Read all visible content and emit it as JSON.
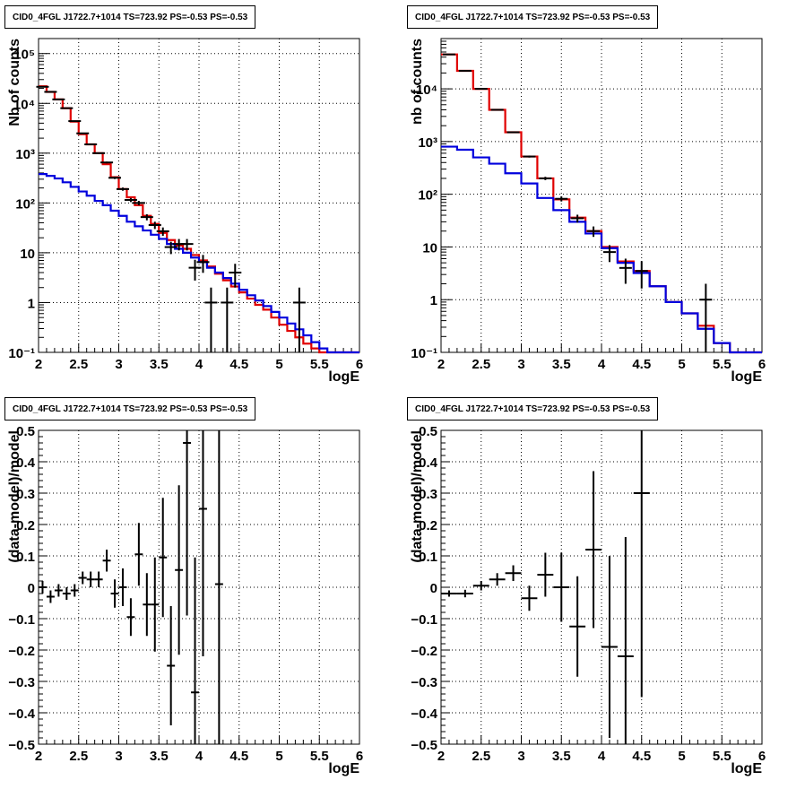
{
  "colors": {
    "data": "#000000",
    "model_total": "#e00000",
    "model_background": "#0000dd",
    "grid": "#000000"
  },
  "chart_data": [
    {
      "type": "step-histogram",
      "title": "CID0_4FGL J1722.7+1014 TS=723.92 PS=-0.53 PS=-0.53",
      "xlabel": "logE",
      "ylabel": "Nb of counts",
      "log_y": true,
      "grid": true,
      "xlim": [
        2,
        6
      ],
      "ylim": [
        0.1,
        200000
      ],
      "x_ticks": [
        {
          "v": 2,
          "label": "2"
        },
        {
          "v": 2.5,
          "label": "2.5"
        },
        {
          "v": 3,
          "label": "3"
        },
        {
          "v": 3.5,
          "label": "3.5"
        },
        {
          "v": 4,
          "label": "4"
        },
        {
          "v": 4.5,
          "label": "4.5"
        },
        {
          "v": 5,
          "label": "5"
        },
        {
          "v": 5.5,
          "label": "5.5"
        },
        {
          "v": 6,
          "label": "6"
        }
      ],
      "y_ticks": [
        {
          "v": 0.1,
          "label": "10⁻¹"
        },
        {
          "v": 1,
          "label": "1"
        },
        {
          "v": 10,
          "label": "10"
        },
        {
          "v": 100,
          "label": "10²"
        },
        {
          "v": 1000,
          "label": "10³"
        },
        {
          "v": 10000,
          "label": "10⁴"
        },
        {
          "v": 100000,
          "label": "10⁵"
        }
      ],
      "bin_edges": [
        2,
        2.1,
        2.2,
        2.3,
        2.4,
        2.5,
        2.6,
        2.7,
        2.8,
        2.9,
        3,
        3.1,
        3.2,
        3.3,
        3.4,
        3.5,
        3.6,
        3.7,
        3.8,
        3.9,
        4,
        4.1,
        4.2,
        4.3,
        4.4,
        4.5,
        4.6,
        4.7,
        4.8,
        4.9,
        5,
        5.1,
        5.2,
        5.3,
        5.4,
        5.5,
        5.6,
        5.7,
        5.8,
        5.9,
        6
      ],
      "series": [
        {
          "role": "model_total",
          "values": [
            22000,
            17000,
            12000,
            8000,
            4300,
            2400,
            1500,
            1000,
            600,
            330,
            190,
            130,
            90,
            55,
            38,
            25,
            18,
            14,
            12,
            9,
            7,
            5.3,
            3.8,
            2.8,
            2.1,
            1.6,
            1.2,
            0.9,
            0.72,
            0.5,
            0.36,
            0.27,
            0.2,
            0.15,
            0.12,
            0.1,
            0.1,
            0.1,
            0.1,
            0.1
          ]
        },
        {
          "role": "model_background",
          "values": [
            380,
            350,
            310,
            260,
            210,
            170,
            140,
            110,
            90,
            70,
            55,
            42,
            34,
            28,
            23,
            19,
            15,
            12,
            10,
            8,
            6.5,
            5,
            4,
            3.1,
            2.4,
            1.8,
            1.4,
            1.1,
            0.85,
            0.65,
            0.5,
            0.38,
            0.29,
            0.22,
            0.16,
            0.12,
            0.1,
            0.1,
            0.1,
            0.1
          ]
        },
        {
          "role": "data",
          "points": [
            {
              "x": 2.05,
              "y": 21500
            },
            {
              "x": 2.15,
              "y": 17000
            },
            {
              "x": 2.25,
              "y": 12000
            },
            {
              "x": 2.35,
              "y": 8000
            },
            {
              "x": 2.45,
              "y": 4400
            },
            {
              "x": 2.55,
              "y": 2500
            },
            {
              "x": 2.65,
              "y": 1500
            },
            {
              "x": 2.75,
              "y": 1000
            },
            {
              "x": 2.85,
              "y": 650
            },
            {
              "x": 2.95,
              "y": 320
            },
            {
              "x": 3.05,
              "y": 190
            },
            {
              "x": 3.15,
              "y": 115
            },
            {
              "x": 3.25,
              "y": 100
            },
            {
              "x": 3.35,
              "y": 52
            },
            {
              "x": 3.45,
              "y": 36
            },
            {
              "x": 3.55,
              "y": 27
            },
            {
              "x": 3.65,
              "y": 13
            },
            {
              "x": 3.75,
              "y": 15
            },
            {
              "x": 3.85,
              "y": 15
            },
            {
              "x": 3.95,
              "y": 5
            },
            {
              "x": 4.05,
              "y": 6.5
            },
            {
              "x": 4.15,
              "y": 1
            },
            {
              "x": 4.35,
              "y": 1
            },
            {
              "x": 4.45,
              "y": 4
            },
            {
              "x": 5.25,
              "y": 1
            }
          ]
        }
      ]
    },
    {
      "type": "step-histogram",
      "title": "CID0_4FGL J1722.7+1014 TS=723.92 PS=-0.53 PS=-0.53",
      "xlabel": "logE",
      "ylabel": "nb of counts",
      "log_y": true,
      "grid": true,
      "xlim": [
        2,
        6
      ],
      "ylim": [
        0.1,
        90000
      ],
      "x_ticks": [
        {
          "v": 2,
          "label": "2"
        },
        {
          "v": 2.5,
          "label": "2.5"
        },
        {
          "v": 3,
          "label": "3"
        },
        {
          "v": 3.5,
          "label": "3.5"
        },
        {
          "v": 4,
          "label": "4"
        },
        {
          "v": 4.5,
          "label": "4.5"
        },
        {
          "v": 5,
          "label": "5"
        },
        {
          "v": 5.5,
          "label": "5.5"
        },
        {
          "v": 6,
          "label": "6"
        }
      ],
      "y_ticks": [
        {
          "v": 0.1,
          "label": "10⁻¹"
        },
        {
          "v": 1,
          "label": "1"
        },
        {
          "v": 10,
          "label": "10"
        },
        {
          "v": 100,
          "label": "10²"
        },
        {
          "v": 1000,
          "label": "10³"
        },
        {
          "v": 10000,
          "label": "10⁴"
        }
      ],
      "bin_edges": [
        2,
        2.2,
        2.4,
        2.6,
        2.8,
        3,
        3.2,
        3.4,
        3.6,
        3.8,
        4,
        4.2,
        4.4,
        4.6,
        4.8,
        5,
        5.2,
        5.4,
        5.6,
        5.8,
        6
      ],
      "series": [
        {
          "role": "model_total",
          "values": [
            45000,
            22000,
            10000,
            4000,
            1500,
            520,
            200,
            80,
            36,
            20,
            10,
            5.3,
            3.5,
            1.8,
            0.9,
            0.55,
            0.32,
            0.15,
            0.1,
            0.1
          ]
        },
        {
          "role": "model_background",
          "values": [
            800,
            700,
            500,
            380,
            250,
            160,
            85,
            50,
            30,
            18,
            9.5,
            5,
            3.2,
            1.8,
            0.9,
            0.55,
            0.28,
            0.15,
            0.1,
            0.1
          ]
        },
        {
          "role": "data",
          "points": [
            {
              "x": 2.1,
              "y": 45000
            },
            {
              "x": 2.3,
              "y": 22000
            },
            {
              "x": 2.5,
              "y": 10000
            },
            {
              "x": 2.7,
              "y": 4000
            },
            {
              "x": 2.9,
              "y": 1500
            },
            {
              "x": 3.1,
              "y": 520
            },
            {
              "x": 3.3,
              "y": 200
            },
            {
              "x": 3.5,
              "y": 82
            },
            {
              "x": 3.7,
              "y": 35
            },
            {
              "x": 3.9,
              "y": 20
            },
            {
              "x": 4.1,
              "y": 8
            },
            {
              "x": 4.3,
              "y": 4
            },
            {
              "x": 4.5,
              "y": 3.5
            },
            {
              "x": 5.3,
              "y": 1
            }
          ]
        }
      ]
    },
    {
      "type": "scatter-errorbars",
      "title": "CID0_4FGL J1722.7+1014 TS=723.92 PS=-0.53 PS=-0.53",
      "xlabel": "logE",
      "ylabel": "(data-model)/model",
      "log_y": false,
      "grid": true,
      "xlim": [
        2,
        6
      ],
      "ylim": [
        -0.5,
        0.5
      ],
      "x_ticks": [
        {
          "v": 2,
          "label": "2"
        },
        {
          "v": 2.5,
          "label": "2.5"
        },
        {
          "v": 3,
          "label": "3"
        },
        {
          "v": 3.5,
          "label": "3.5"
        },
        {
          "v": 4,
          "label": "4"
        },
        {
          "v": 4.5,
          "label": "4.5"
        },
        {
          "v": 5,
          "label": "5"
        },
        {
          "v": 5.5,
          "label": "5.5"
        },
        {
          "v": 6,
          "label": "6"
        }
      ],
      "y_ticks": [
        {
          "v": -0.5,
          "label": "−0.5"
        },
        {
          "v": -0.4,
          "label": "−0.4"
        },
        {
          "v": -0.3,
          "label": "−0.3"
        },
        {
          "v": -0.2,
          "label": "−0.2"
        },
        {
          "v": -0.1,
          "label": "−0.1"
        },
        {
          "v": 0,
          "label": "0"
        },
        {
          "v": 0.1,
          "label": "0.1"
        },
        {
          "v": 0.2,
          "label": "0.2"
        },
        {
          "v": 0.3,
          "label": "0.3"
        },
        {
          "v": 0.4,
          "label": "0.4"
        },
        {
          "v": 0.5,
          "label": "0.5"
        }
      ],
      "series": [
        {
          "role": "data",
          "points": [
            {
              "x": 2.05,
              "y": 0.0,
              "err": 0.02,
              "xerr": 0.05
            },
            {
              "x": 2.15,
              "y": -0.03,
              "err": 0.02,
              "xerr": 0.05
            },
            {
              "x": 2.25,
              "y": -0.01,
              "err": 0.02,
              "xerr": 0.05
            },
            {
              "x": 2.35,
              "y": -0.02,
              "err": 0.02,
              "xerr": 0.05
            },
            {
              "x": 2.45,
              "y": -0.01,
              "err": 0.02,
              "xerr": 0.05
            },
            {
              "x": 2.55,
              "y": 0.03,
              "err": 0.02,
              "xerr": 0.05
            },
            {
              "x": 2.65,
              "y": 0.025,
              "err": 0.025,
              "xerr": 0.05
            },
            {
              "x": 2.75,
              "y": 0.025,
              "err": 0.025,
              "xerr": 0.05
            },
            {
              "x": 2.85,
              "y": 0.085,
              "err": 0.035,
              "xerr": 0.05
            },
            {
              "x": 2.95,
              "y": -0.02,
              "err": 0.045,
              "xerr": 0.05
            },
            {
              "x": 3.05,
              "y": 0.0,
              "err": 0.06,
              "xerr": 0.05
            },
            {
              "x": 3.15,
              "y": -0.095,
              "err": 0.06,
              "xerr": 0.05
            },
            {
              "x": 3.25,
              "y": 0.105,
              "err": 0.1,
              "xerr": 0.05
            },
            {
              "x": 3.35,
              "y": -0.055,
              "err": 0.1,
              "xerr": 0.05
            },
            {
              "x": 3.45,
              "y": -0.055,
              "err": 0.15,
              "xerr": 0.05
            },
            {
              "x": 3.55,
              "y": 0.095,
              "err": 0.19,
              "xerr": 0.05
            },
            {
              "x": 3.65,
              "y": -0.25,
              "err": 0.19,
              "xerr": 0.05
            },
            {
              "x": 3.75,
              "y": 0.055,
              "err": 0.27,
              "xerr": 0.05
            },
            {
              "x": 3.85,
              "y": 0.46,
              "err": 0.55,
              "xerr": 0.05
            },
            {
              "x": 3.95,
              "y": -0.335,
              "err": 0.43,
              "xerr": 0.05
            },
            {
              "x": 4.05,
              "y": 0.25,
              "err": 0.47,
              "xerr": 0.05
            },
            {
              "x": 4.25,
              "y": 0.01,
              "err": 1.0,
              "xerr": 0.05
            }
          ]
        }
      ]
    },
    {
      "type": "scatter-errorbars",
      "title": "CID0_4FGL J1722.7+1014 TS=723.92 PS=-0.53 PS=-0.53",
      "xlabel": "logE",
      "ylabel": "(data-model)/model",
      "log_y": false,
      "grid": true,
      "xlim": [
        2,
        6
      ],
      "ylim": [
        -0.5,
        0.5
      ],
      "x_ticks": [
        {
          "v": 2,
          "label": "2"
        },
        {
          "v": 2.5,
          "label": "2.5"
        },
        {
          "v": 3,
          "label": "3"
        },
        {
          "v": 3.5,
          "label": "3.5"
        },
        {
          "v": 4,
          "label": "4"
        },
        {
          "v": 4.5,
          "label": "4.5"
        },
        {
          "v": 5,
          "label": "5"
        },
        {
          "v": 5.5,
          "label": "5.5"
        },
        {
          "v": 6,
          "label": "6"
        }
      ],
      "y_ticks": [
        {
          "v": -0.5,
          "label": "−0.5"
        },
        {
          "v": -0.4,
          "label": "−0.4"
        },
        {
          "v": -0.3,
          "label": "−0.3"
        },
        {
          "v": -0.2,
          "label": "−0.2"
        },
        {
          "v": -0.1,
          "label": "−0.1"
        },
        {
          "v": 0,
          "label": "0"
        },
        {
          "v": 0.1,
          "label": "0.1"
        },
        {
          "v": 0.2,
          "label": "0.2"
        },
        {
          "v": 0.3,
          "label": "0.3"
        },
        {
          "v": 0.4,
          "label": "0.4"
        },
        {
          "v": 0.5,
          "label": "0.5"
        }
      ],
      "series": [
        {
          "role": "data",
          "points": [
            {
              "x": 2.1,
              "y": -0.02,
              "err": 0.01,
              "xerr": 0.1
            },
            {
              "x": 2.3,
              "y": -0.02,
              "err": 0.012,
              "xerr": 0.1
            },
            {
              "x": 2.5,
              "y": 0.005,
              "err": 0.015,
              "xerr": 0.1
            },
            {
              "x": 2.7,
              "y": 0.025,
              "err": 0.02,
              "xerr": 0.1
            },
            {
              "x": 2.9,
              "y": 0.045,
              "err": 0.025,
              "xerr": 0.1
            },
            {
              "x": 3.1,
              "y": -0.035,
              "err": 0.04,
              "xerr": 0.1
            },
            {
              "x": 3.3,
              "y": 0.04,
              "err": 0.07,
              "xerr": 0.1
            },
            {
              "x": 3.5,
              "y": 0.0,
              "err": 0.11,
              "xerr": 0.1
            },
            {
              "x": 3.7,
              "y": -0.125,
              "err": 0.16,
              "xerr": 0.1
            },
            {
              "x": 3.9,
              "y": 0.12,
              "err": 0.25,
              "xerr": 0.1
            },
            {
              "x": 4.1,
              "y": -0.19,
              "err": 0.29,
              "xerr": 0.1
            },
            {
              "x": 4.3,
              "y": -0.22,
              "err": 0.38,
              "xerr": 0.1
            },
            {
              "x": 4.5,
              "y": 0.3,
              "err": 0.65,
              "xerr": 0.1
            }
          ]
        }
      ]
    }
  ]
}
